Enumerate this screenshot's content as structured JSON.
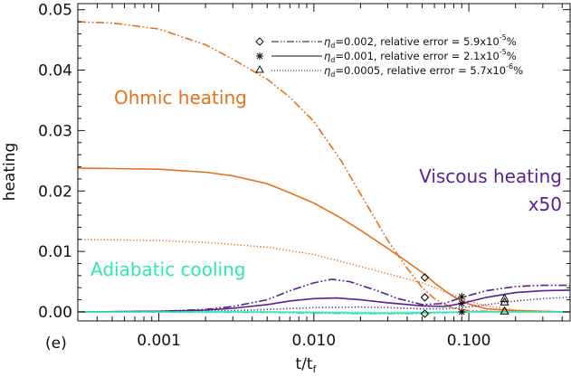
{
  "chart_data": {
    "type": "line",
    "title": "",
    "panel_label": "(e)",
    "xlabel": "t/t",
    "xlabel_sub": "f",
    "ylabel": "heating",
    "xscale": "log",
    "xlim": [
      0.0003,
      0.45
    ],
    "ylim": [
      -0.0015,
      0.051
    ],
    "x_ticks": [
      {
        "value": 0.001,
        "label": "0.001"
      },
      {
        "value": 0.01,
        "label": "0.010"
      },
      {
        "value": 0.1,
        "label": "0.100"
      }
    ],
    "y_ticks": [
      {
        "value": 0.0,
        "label": "0.00"
      },
      {
        "value": 0.01,
        "label": "0.01"
      },
      {
        "value": 0.02,
        "label": "0.02"
      },
      {
        "value": 0.03,
        "label": "0.03"
      },
      {
        "value": 0.04,
        "label": "0.04"
      },
      {
        "value": 0.05,
        "label": "0.05"
      }
    ],
    "colors": {
      "ohmic": "#e8701a",
      "viscous": "#5b1f94",
      "adiabatic": "#2ee8b0",
      "axis": "#111111"
    },
    "annotations": [
      {
        "text": "Ohmic heating",
        "color": "#e8701a"
      },
      {
        "text": "Viscous heating",
        "color": "#5b1f94"
      },
      {
        "text": "x50",
        "color": "#5b1f94"
      },
      {
        "text": "Adiabatic cooling",
        "color": "#2ee8b0"
      }
    ],
    "legend": [
      {
        "symbol": "diamond",
        "style": "dash-dot-dot",
        "eta_label": "η",
        "eta_sub": "d",
        "value_text": "=0.002, relative error = 5.9x10",
        "exp": "-5",
        "unit": "%"
      },
      {
        "symbol": "asterisk",
        "style": "solid",
        "eta_label": "η",
        "eta_sub": "d",
        "value_text": "=0.001, relative error = 2.1x10",
        "exp": "-5",
        "unit": "%"
      },
      {
        "symbol": "triangle",
        "style": "dotted",
        "eta_label": "η",
        "eta_sub": "d",
        "value_text": "=0.0005, relative error = 5.7x10",
        "exp": "-6",
        "unit": "%"
      }
    ],
    "series": [
      {
        "name": "Ohmic heating, eta_d=0.002",
        "group": "ohmic",
        "style": "dash-dot-dot",
        "x": [
          0.0003,
          0.0005,
          0.001,
          0.002,
          0.003,
          0.005,
          0.007,
          0.01,
          0.015,
          0.02,
          0.03,
          0.04,
          0.05,
          0.06,
          0.07,
          0.08,
          0.1,
          0.13,
          0.2,
          0.3,
          0.45
        ],
        "y": [
          0.048,
          0.0478,
          0.0468,
          0.0442,
          0.0418,
          0.0385,
          0.0355,
          0.0315,
          0.025,
          0.0195,
          0.0118,
          0.0072,
          0.004,
          0.0022,
          0.0012,
          0.0006,
          0.0002,
          0.0001,
          0.0,
          0.0,
          0.0
        ]
      },
      {
        "name": "Ohmic heating, eta_d=0.001",
        "group": "ohmic",
        "style": "solid",
        "x": [
          0.0003,
          0.001,
          0.002,
          0.003,
          0.005,
          0.007,
          0.01,
          0.015,
          0.02,
          0.03,
          0.04,
          0.05,
          0.06,
          0.07,
          0.08,
          0.1,
          0.13,
          0.2,
          0.3,
          0.45
        ],
        "y": [
          0.0238,
          0.0236,
          0.0231,
          0.0225,
          0.0212,
          0.0197,
          0.018,
          0.0155,
          0.0135,
          0.0105,
          0.0083,
          0.0065,
          0.0048,
          0.0035,
          0.0025,
          0.0013,
          0.0005,
          0.0002,
          0.0001,
          0.0
        ]
      },
      {
        "name": "Ohmic heating, eta_d=0.0005",
        "group": "ohmic",
        "style": "dotted",
        "x": [
          0.0003,
          0.001,
          0.002,
          0.005,
          0.01,
          0.02,
          0.03,
          0.05,
          0.07,
          0.1,
          0.13,
          0.2,
          0.3,
          0.45
        ],
        "y": [
          0.012,
          0.0118,
          0.0115,
          0.0107,
          0.0095,
          0.0075,
          0.0063,
          0.0048,
          0.0033,
          0.0018,
          0.001,
          0.0003,
          0.0001,
          0.0
        ]
      },
      {
        "name": "Viscous heating x50, eta_d=0.002",
        "group": "viscous",
        "style": "dash-dot-dot",
        "x": [
          0.0003,
          0.001,
          0.002,
          0.003,
          0.005,
          0.007,
          0.01,
          0.013,
          0.017,
          0.025,
          0.035,
          0.05,
          0.07,
          0.09,
          0.13,
          0.2,
          0.3,
          0.45
        ],
        "y": [
          0.0,
          0.0001,
          0.0004,
          0.0009,
          0.002,
          0.0035,
          0.0048,
          0.0054,
          0.005,
          0.0036,
          0.0022,
          0.0012,
          0.0014,
          0.0024,
          0.0035,
          0.0042,
          0.0044,
          0.0044
        ]
      },
      {
        "name": "Viscous heating x50, eta_d=0.001",
        "group": "viscous",
        "style": "solid",
        "x": [
          0.0003,
          0.001,
          0.002,
          0.003,
          0.005,
          0.007,
          0.01,
          0.014,
          0.02,
          0.03,
          0.05,
          0.07,
          0.09,
          0.13,
          0.2,
          0.3,
          0.45
        ],
        "y": [
          0.0,
          0.0001,
          0.0003,
          0.0006,
          0.0012,
          0.0018,
          0.0022,
          0.0023,
          0.002,
          0.0015,
          0.001,
          0.0009,
          0.0014,
          0.0024,
          0.0032,
          0.0035,
          0.0036
        ]
      },
      {
        "name": "Viscous heating x50, eta_d=0.0005",
        "group": "viscous",
        "style": "dotted",
        "x": [
          0.0003,
          0.001,
          0.003,
          0.005,
          0.01,
          0.02,
          0.03,
          0.05,
          0.07,
          0.1,
          0.15,
          0.2,
          0.3,
          0.45
        ],
        "y": [
          0.0,
          0.0,
          0.0002,
          0.0004,
          0.0007,
          0.0008,
          0.0007,
          0.0005,
          0.0005,
          0.0008,
          0.0014,
          0.0018,
          0.0022,
          0.0024
        ]
      },
      {
        "name": "Adiabatic cooling, eta_d=0.002",
        "group": "adiabatic",
        "style": "dash-dot-dot",
        "x": [
          0.0003,
          0.005,
          0.01,
          0.02,
          0.04,
          0.06,
          0.1,
          0.2,
          0.45
        ],
        "y": [
          0.0,
          -0.0001,
          -0.0002,
          -0.0003,
          -0.0003,
          -0.0002,
          0.0,
          0.0,
          0.0
        ]
      },
      {
        "name": "Adiabatic cooling, eta_d=0.001",
        "group": "adiabatic",
        "style": "solid",
        "x": [
          0.0003,
          0.005,
          0.01,
          0.02,
          0.04,
          0.06,
          0.1,
          0.2,
          0.45
        ],
        "y": [
          0.0,
          0.0,
          -0.0001,
          -0.0002,
          -0.0002,
          -0.0001,
          0.0,
          0.0,
          0.0
        ]
      },
      {
        "name": "Adiabatic cooling, eta_d=0.0005",
        "group": "adiabatic",
        "style": "dotted",
        "x": [
          0.0003,
          0.01,
          0.03,
          0.1,
          0.45
        ],
        "y": [
          0.0,
          0.0,
          -0.0001,
          0.0,
          0.0
        ]
      }
    ],
    "markers": [
      {
        "symbol": "diamond",
        "x": 0.052,
        "y": 0.0057
      },
      {
        "symbol": "diamond",
        "x": 0.052,
        "y": 0.0024
      },
      {
        "symbol": "diamond",
        "x": 0.052,
        "y": -0.0003
      },
      {
        "symbol": "asterisk",
        "x": 0.09,
        "y": 0.0025
      },
      {
        "symbol": "asterisk",
        "x": 0.09,
        "y": 0.0014
      },
      {
        "symbol": "asterisk",
        "x": 0.09,
        "y": 0.0
      },
      {
        "symbol": "triangle",
        "x": 0.17,
        "y": 0.0022
      },
      {
        "symbol": "triangle",
        "x": 0.17,
        "y": 0.0016
      },
      {
        "symbol": "triangle",
        "x": 0.17,
        "y": 0.0001
      }
    ]
  }
}
